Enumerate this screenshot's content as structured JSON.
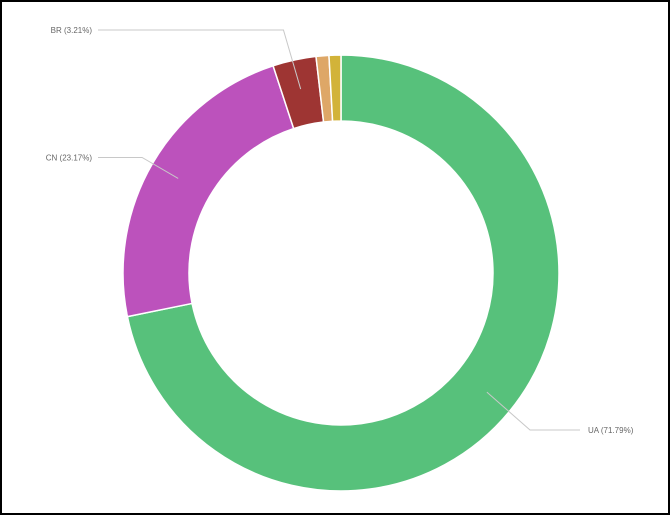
{
  "colors": {
    "background": "#000000",
    "panel": "#ffffff",
    "leader_line": "#c8c8c8"
  },
  "chart_data": {
    "type": "pie",
    "variant": "donut",
    "title": "",
    "legend": "none",
    "slices": [
      {
        "label": "UA (71.79%)",
        "value": 71.79,
        "color": "#57c17b",
        "show_label": true
      },
      {
        "label": "CN (23.17%)",
        "value": 23.17,
        "color": "#bc52bc",
        "show_label": true
      },
      {
        "label": "BR (3.21%)",
        "value": 3.21,
        "color": "#9e3533",
        "show_label": true
      },
      {
        "value": 0.95,
        "color": "#dea767",
        "show_label": false
      },
      {
        "value": 0.88,
        "color": "#d2b339",
        "show_label": false
      }
    ]
  }
}
